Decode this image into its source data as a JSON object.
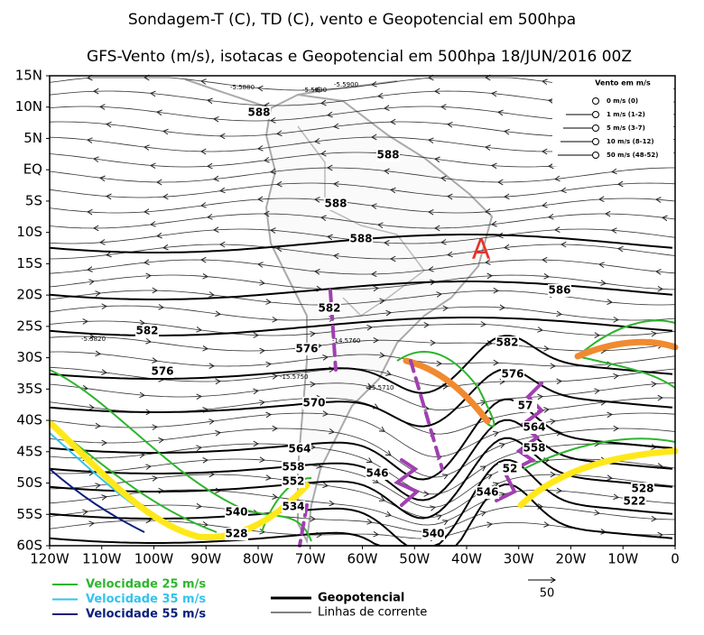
{
  "title": "Sondagem-T (C), TD (C), vento e Geopotencial em 500hpa",
  "subtitle": "GFS-Vento (m/s), isotacas e Geopotencial em 500hpa 18/JUN/2016 00Z",
  "lat_labels": [
    "15N",
    "10N",
    "5N",
    "EQ",
    "5S",
    "10S",
    "15S",
    "20S",
    "25S",
    "30S",
    "35S",
    "40S",
    "45S",
    "50S",
    "55S",
    "60S"
  ],
  "lon_labels": [
    "120W",
    "110W",
    "100W",
    "90W",
    "80W",
    "70W",
    "60W",
    "50W",
    "40W",
    "30W",
    "20W",
    "10W",
    "0"
  ],
  "contour_labels": [
    "588",
    "588",
    "588",
    "588",
    "586",
    "582",
    "582",
    "582",
    "576",
    "576",
    "576",
    "570",
    "57",
    "564",
    "564",
    "558",
    "558",
    "552",
    "52",
    "546",
    "546",
    "540",
    "540",
    "534",
    "528",
    "522",
    "528"
  ],
  "station_labels": [
    "-5.5880",
    "-5.5900",
    "-5.5900",
    "-5.5820",
    "-14.5760",
    "-15.5750",
    "-15.5710"
  ],
  "high_marker": "A",
  "wind_legend": {
    "title": "Vento em m/s",
    "entries": [
      "0 m/s (0)",
      "1 m/s (1-2)",
      "5 m/s (3-7)",
      "10 m/s (8-12)",
      "50 m/s (48-52)"
    ]
  },
  "isotach_legend": [
    {
      "label": "Velocidade 25 m/s",
      "color": "#2db52d"
    },
    {
      "label": "Velocidade 35 m/s",
      "color": "#33c3ee"
    },
    {
      "label": "Velocidade 55 m/s",
      "color": "#0a1f7a"
    }
  ],
  "line_legend": [
    "Geopotencial",
    "Linhas de corrente"
  ],
  "scale_label": "50"
}
